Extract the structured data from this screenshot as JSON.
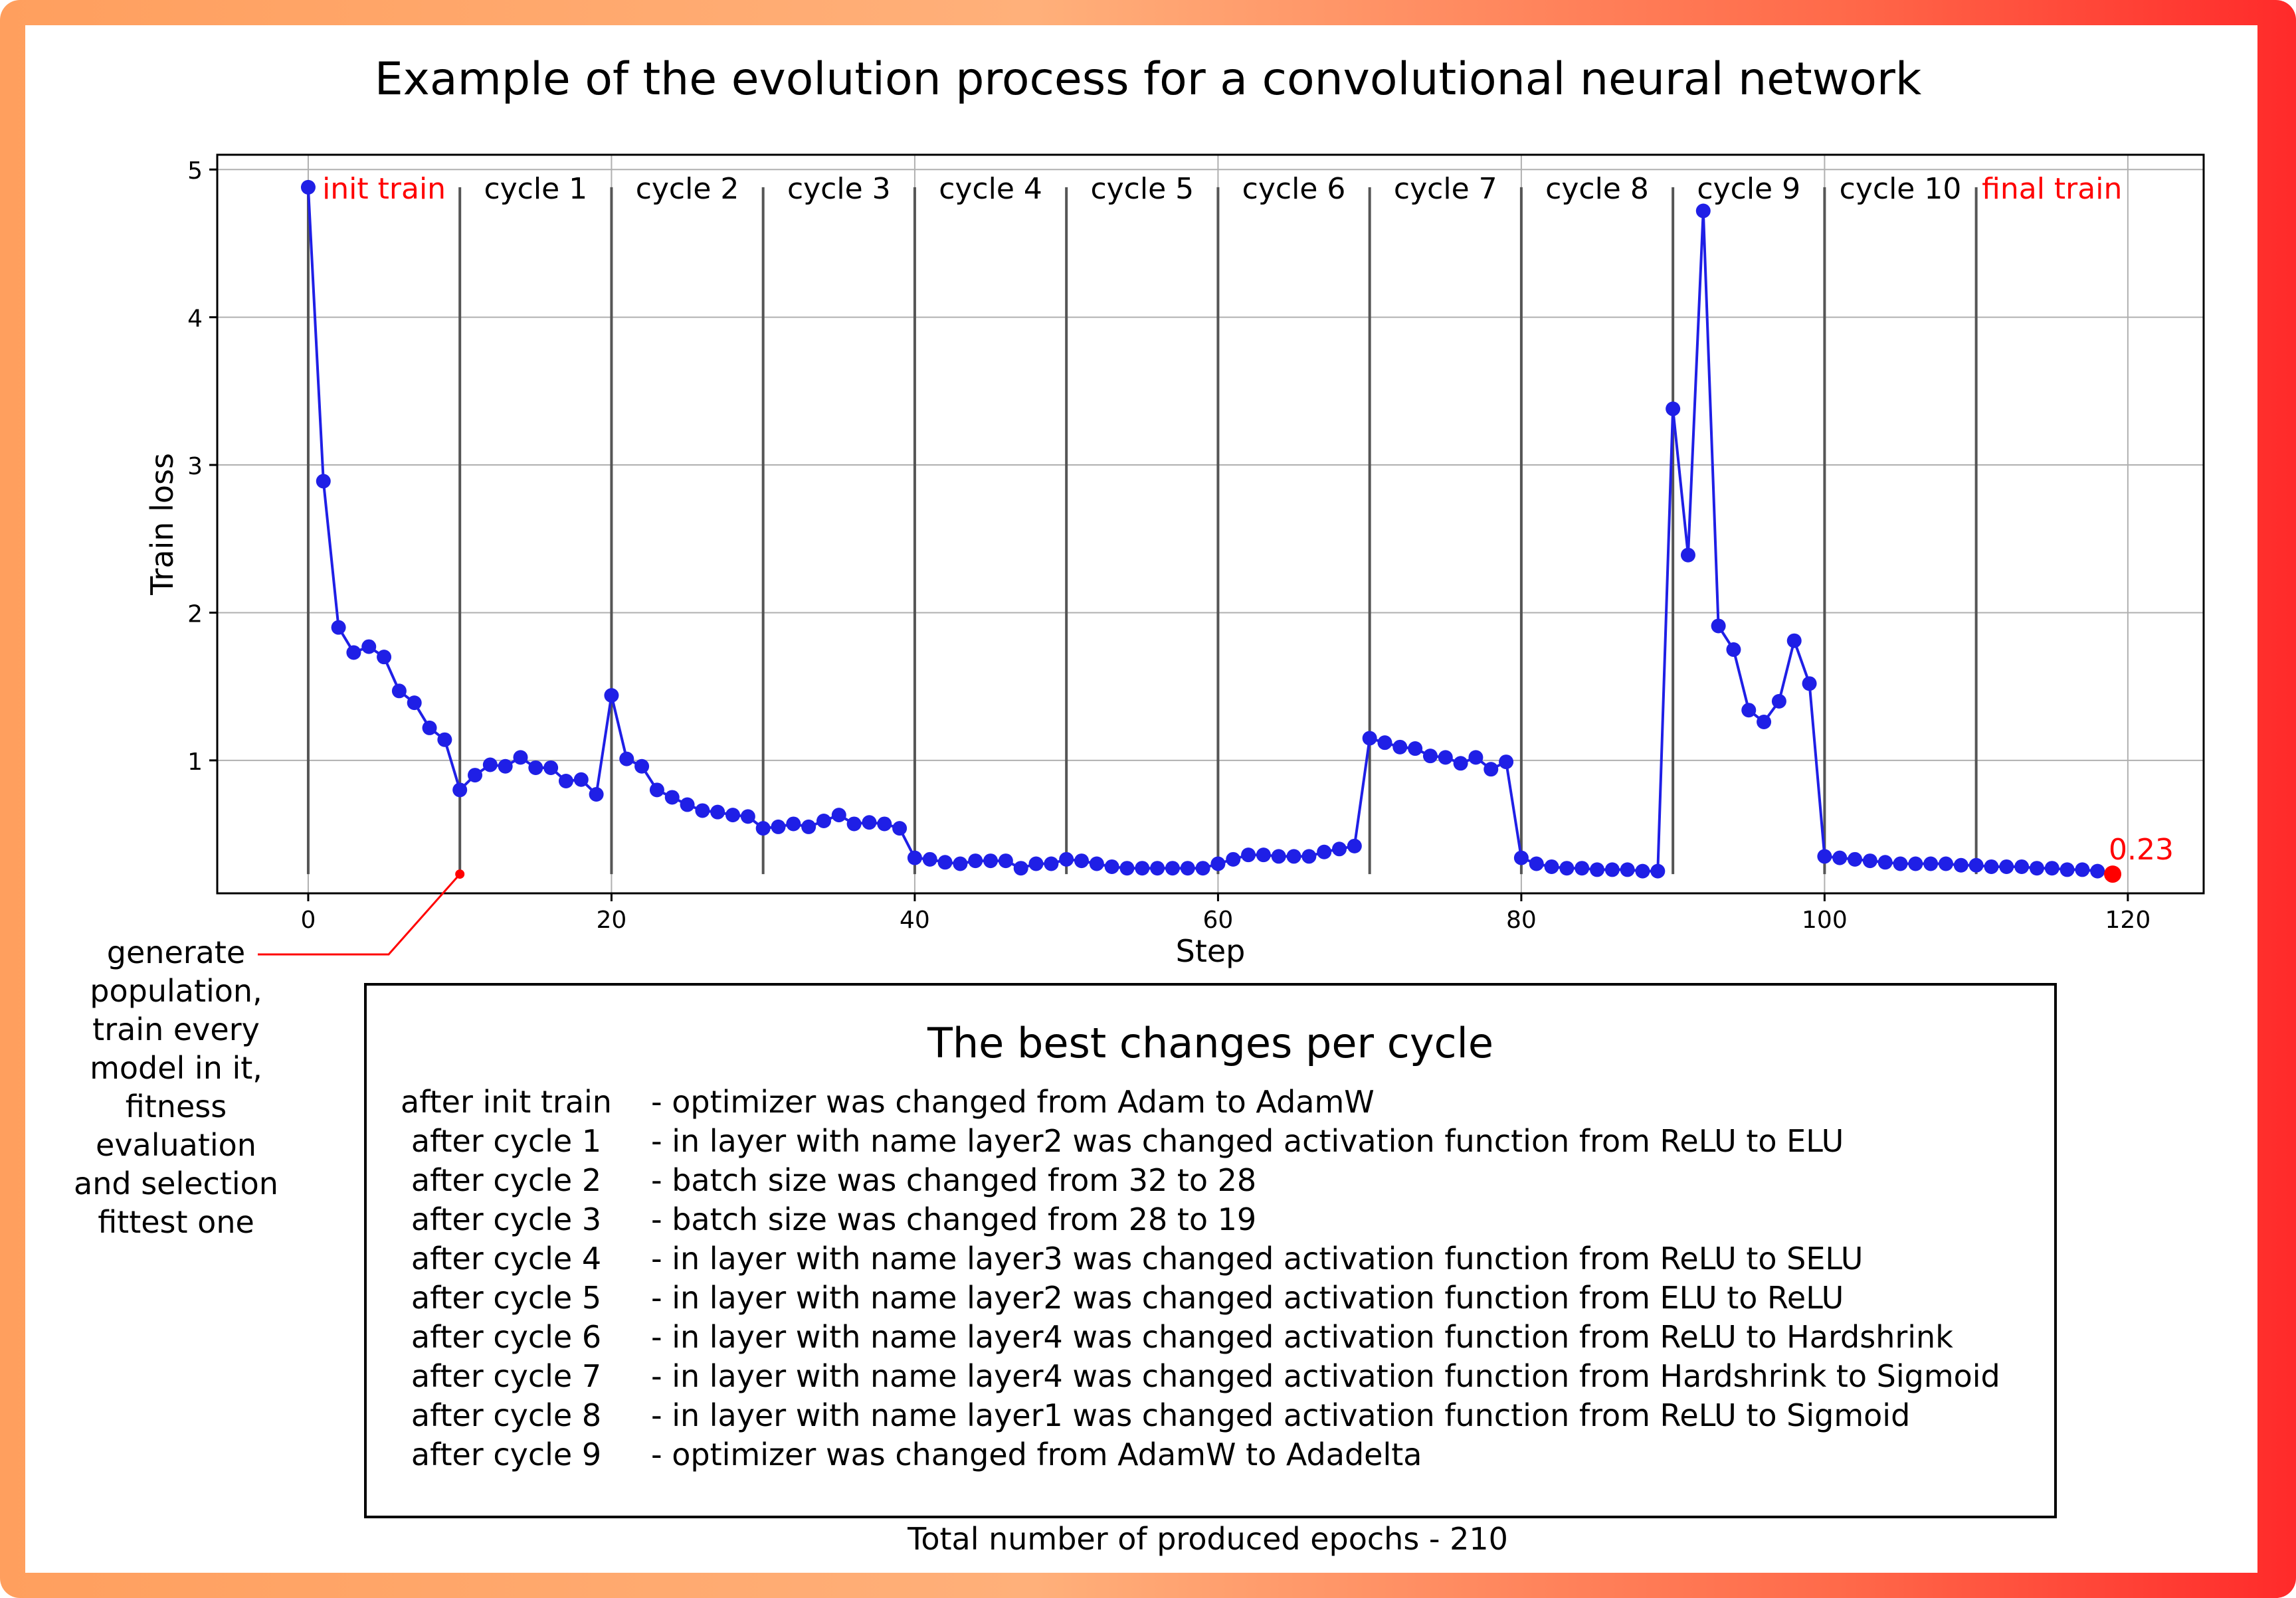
{
  "title": "Example of the evolution process for a convolutional neural network",
  "chart_data": {
    "type": "line",
    "xlabel": "Step",
    "ylabel": "Train loss",
    "xlim": [
      -6,
      125
    ],
    "ylim": [
      0.1,
      5.1
    ],
    "xticks": [
      0,
      20,
      40,
      60,
      80,
      100,
      120
    ],
    "yticks": [
      1,
      2,
      3,
      4,
      5
    ],
    "grid": true,
    "line_color": "#1f1fe6",
    "marker_color": "#1f1fe6",
    "final_color": "#ff0000",
    "x": [
      0,
      1,
      2,
      3,
      4,
      5,
      6,
      7,
      8,
      9,
      10,
      11,
      12,
      13,
      14,
      15,
      16,
      17,
      18,
      19,
      20,
      21,
      22,
      23,
      24,
      25,
      26,
      27,
      28,
      29,
      30,
      31,
      32,
      33,
      34,
      35,
      36,
      37,
      38,
      39,
      40,
      41,
      42,
      43,
      44,
      45,
      46,
      47,
      48,
      49,
      50,
      51,
      52,
      53,
      54,
      55,
      56,
      57,
      58,
      59,
      60,
      61,
      62,
      63,
      64,
      65,
      66,
      67,
      68,
      69,
      70,
      71,
      72,
      73,
      74,
      75,
      76,
      77,
      78,
      79,
      80,
      81,
      82,
      83,
      84,
      85,
      86,
      87,
      88,
      89,
      90,
      91,
      92,
      93,
      94,
      95,
      96,
      97,
      98,
      99,
      100,
      101,
      102,
      103,
      104,
      105,
      106,
      107,
      108,
      109,
      110,
      111,
      112,
      113,
      114,
      115,
      116,
      117,
      118,
      119
    ],
    "y": [
      4.88,
      2.89,
      1.9,
      1.73,
      1.77,
      1.7,
      1.47,
      1.39,
      1.22,
      1.14,
      0.8,
      0.9,
      0.97,
      0.96,
      1.02,
      0.95,
      0.95,
      0.86,
      0.87,
      0.77,
      1.44,
      1.01,
      0.96,
      0.8,
      0.75,
      0.7,
      0.66,
      0.65,
      0.63,
      0.62,
      0.54,
      0.55,
      0.57,
      0.55,
      0.59,
      0.63,
      0.57,
      0.58,
      0.57,
      0.54,
      0.34,
      0.33,
      0.31,
      0.3,
      0.32,
      0.32,
      0.32,
      0.27,
      0.3,
      0.3,
      0.33,
      0.32,
      0.3,
      0.28,
      0.27,
      0.27,
      0.27,
      0.27,
      0.27,
      0.27,
      0.3,
      0.33,
      0.36,
      0.36,
      0.35,
      0.35,
      0.35,
      0.38,
      0.4,
      0.42,
      1.15,
      1.12,
      1.09,
      1.08,
      1.03,
      1.02,
      0.98,
      1.02,
      0.94,
      0.99,
      0.34,
      0.3,
      0.28,
      0.27,
      0.27,
      0.26,
      0.26,
      0.26,
      0.25,
      0.25,
      3.38,
      2.39,
      4.72,
      1.91,
      1.75,
      1.34,
      1.26,
      1.4,
      1.81,
      1.52,
      0.35,
      0.34,
      0.33,
      0.32,
      0.31,
      0.3,
      0.3,
      0.3,
      0.3,
      0.29,
      0.29,
      0.28,
      0.28,
      0.28,
      0.27,
      0.27,
      0.26,
      0.26,
      0.25,
      0.23
    ],
    "final_label": "0.23",
    "cycle_boundaries": [
      10,
      20,
      30,
      40,
      50,
      60,
      70,
      80,
      90,
      100,
      110
    ],
    "phase_labels": [
      {
        "text": "init train",
        "x": 5,
        "color": "#ff0000"
      },
      {
        "text": "cycle 1",
        "x": 15,
        "color": "#000000"
      },
      {
        "text": "cycle 2",
        "x": 25,
        "color": "#000000"
      },
      {
        "text": "cycle 3",
        "x": 35,
        "color": "#000000"
      },
      {
        "text": "cycle 4",
        "x": 45,
        "color": "#000000"
      },
      {
        "text": "cycle 5",
        "x": 55,
        "color": "#000000"
      },
      {
        "text": "cycle 6",
        "x": 65,
        "color": "#000000"
      },
      {
        "text": "cycle 7",
        "x": 75,
        "color": "#000000"
      },
      {
        "text": "cycle 8",
        "x": 85,
        "color": "#000000"
      },
      {
        "text": "cycle 9",
        "x": 95,
        "color": "#000000"
      },
      {
        "text": "cycle 10",
        "x": 105,
        "color": "#000000"
      },
      {
        "text": "final train",
        "x": 115,
        "color": "#ff0000"
      }
    ],
    "annotation_point": {
      "x": 10,
      "y": 0.23
    }
  },
  "annotation": "generate population, train every model in it, fitness evaluation and selection fittest one",
  "changes": {
    "title": "The best changes per cycle",
    "rows": [
      {
        "label": "after init train",
        "text": "- optimizer was changed from Adam to AdamW"
      },
      {
        "label": "after cycle 1",
        "text": "- in layer with name layer2 was changed activation function from ReLU to ELU"
      },
      {
        "label": "after cycle 2",
        "text": "- batch size was changed from 32 to 28"
      },
      {
        "label": "after cycle 3",
        "text": "- batch size was changed from 28 to 19"
      },
      {
        "label": "after cycle 4",
        "text": "- in layer with name layer3 was changed activation function from ReLU to SELU"
      },
      {
        "label": "after cycle 5",
        "text": "- in layer with name layer2 was changed activation function from ELU to ReLU"
      },
      {
        "label": "after cycle 6",
        "text": "- in layer with name layer4 was changed activation function from ReLU to Hardshrink"
      },
      {
        "label": "after cycle 7",
        "text": "- in layer with name layer4 was changed activation function from Hardshrink to Sigmoid"
      },
      {
        "label": "after cycle 8",
        "text": "- in layer with name layer1 was changed activation function from ReLU to Sigmoid"
      },
      {
        "label": "after cycle 9",
        "text": "- optimizer was changed from AdamW to Adadelta"
      }
    ]
  },
  "total": "Total number of produced epochs - 210"
}
